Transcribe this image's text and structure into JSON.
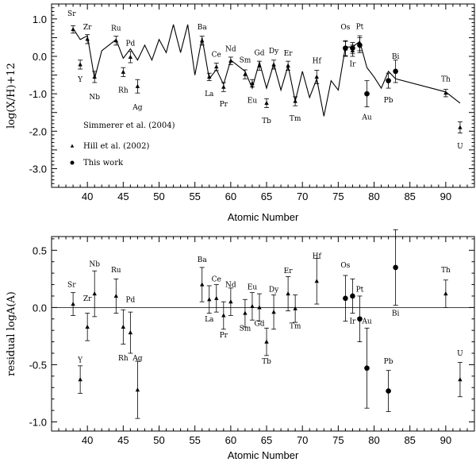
{
  "chart_data": [
    {
      "type": "scatter",
      "id": "top",
      "xlabel": "Atomic Number",
      "ylabel": "log(X/H)+12",
      "xlim": [
        35,
        94
      ],
      "ylim": [
        -3.5,
        1.4
      ],
      "xticks": [
        40,
        45,
        50,
        55,
        60,
        65,
        70,
        75,
        80,
        85,
        90
      ],
      "xtick_labels": [
        "40",
        "45",
        "50",
        "55",
        "60",
        "65",
        "70",
        "75",
        "80",
        "85",
        "90"
      ],
      "yticks": [
        1.0,
        0.0,
        -1.0,
        -2.0,
        -3.0
      ],
      "ytick_labels": [
        "1.0",
        "0.0",
        "-1.0",
        "-2.0",
        "-3.0"
      ],
      "legend": [
        {
          "marker": "none",
          "label": "Simmerer et al. (2004)"
        },
        {
          "marker": "triangle",
          "label": "Hill et al. (2002)"
        },
        {
          "marker": "circle",
          "label": "This work"
        }
      ],
      "series": [
        {
          "name": "Simmerer et al. (2004)",
          "kind": "line",
          "x": [
            38,
            39,
            40,
            41,
            42,
            44,
            45,
            46,
            47,
            48,
            49,
            50,
            51,
            52,
            53,
            54,
            55,
            56,
            57,
            58,
            59,
            60,
            62,
            63,
            64,
            65,
            66,
            67,
            68,
            69,
            70,
            71,
            72,
            73,
            74,
            75,
            76,
            77,
            78,
            79,
            80,
            81,
            82,
            83,
            90,
            92
          ],
          "y": [
            0.75,
            0.45,
            0.55,
            -0.6,
            0.15,
            0.45,
            -0.05,
            0.2,
            -0.1,
            0.3,
            -0.1,
            0.45,
            0.1,
            0.85,
            0.1,
            0.85,
            -0.5,
            0.5,
            -0.6,
            -0.35,
            -0.75,
            -0.1,
            -0.4,
            -0.85,
            -0.15,
            -0.85,
            -0.2,
            -0.9,
            -0.25,
            -1.2,
            -0.4,
            -1.1,
            -0.6,
            -1.6,
            -0.65,
            -0.9,
            0.25,
            0.25,
            0.4,
            -0.3,
            -0.55,
            -0.85,
            -0.4,
            -0.6,
            -0.95,
            -1.25
          ]
        },
        {
          "name": "Hill et al. (2002)",
          "kind": "triangle",
          "points": [
            {
              "el": "Sr",
              "z": 38,
              "y": 0.72,
              "err": 0.1
            },
            {
              "el": "Y",
              "z": 39,
              "y": -0.22,
              "err": 0.12
            },
            {
              "el": "Zr",
              "z": 40,
              "y": 0.46,
              "err": 0.12
            },
            {
              "el": "Nb",
              "z": 41,
              "y": -0.55,
              "err": 0.15
            },
            {
              "el": "Ru",
              "z": 44,
              "y": 0.42,
              "err": 0.12
            },
            {
              "el": "Rh",
              "z": 45,
              "y": -0.42,
              "err": 0.12
            },
            {
              "el": "Pd",
              "z": 46,
              "y": -0.02,
              "err": 0.15
            },
            {
              "el": "Ag",
              "z": 47,
              "y": -0.8,
              "err": 0.18
            },
            {
              "el": "Ba",
              "z": 56,
              "y": 0.42,
              "err": 0.12
            },
            {
              "el": "La",
              "z": 57,
              "y": -0.55,
              "err": 0.1
            },
            {
              "el": "Ce",
              "z": 58,
              "y": -0.28,
              "err": 0.1
            },
            {
              "el": "Pr",
              "z": 59,
              "y": -0.82,
              "err": 0.12
            },
            {
              "el": "Nd",
              "z": 60,
              "y": -0.12,
              "err": 0.1
            },
            {
              "el": "Sm",
              "z": 62,
              "y": -0.48,
              "err": 0.12
            },
            {
              "el": "Eu",
              "z": 63,
              "y": -0.72,
              "err": 0.1
            },
            {
              "el": "Gd",
              "z": 64,
              "y": -0.25,
              "err": 0.12
            },
            {
              "el": "Tb",
              "z": 65,
              "y": -1.25,
              "err": 0.12
            },
            {
              "el": "Dy",
              "z": 66,
              "y": -0.22,
              "err": 0.12
            },
            {
              "el": "Er",
              "z": 68,
              "y": -0.25,
              "err": 0.12
            },
            {
              "el": "Tm",
              "z": 69,
              "y": -1.2,
              "err": 0.12
            },
            {
              "el": "Hf",
              "z": 72,
              "y": -0.55,
              "err": 0.18
            },
            {
              "el": "Os",
              "z": 76,
              "y": 0.2,
              "err": 0.2
            },
            {
              "el": "Ir",
              "z": 77,
              "y": 0.15,
              "err": 0.15
            },
            {
              "el": "Pt",
              "z": 78,
              "y": 0.35,
              "err": 0.2
            },
            {
              "el": "Th",
              "z": 90,
              "y": -0.98,
              "err": 0.1
            },
            {
              "el": "U",
              "z": 92,
              "y": -1.9,
              "err": 0.15
            }
          ]
        },
        {
          "name": "This work",
          "kind": "circle",
          "points": [
            {
              "el": "Os",
              "z": 76,
              "y": 0.22,
              "err": 0.2
            },
            {
              "el": "Ir",
              "z": 77,
              "y": 0.22,
              "err": 0.15
            },
            {
              "el": "Pt",
              "z": 78,
              "y": 0.3,
              "err": 0.2
            },
            {
              "el": "Au",
              "z": 79,
              "y": -1.0,
              "err": 0.35
            },
            {
              "el": "Pb",
              "z": 82,
              "y": -0.65,
              "err": 0.2
            },
            {
              "el": "Bi",
              "z": 83,
              "y": -0.4,
              "err": 0.3
            }
          ]
        }
      ],
      "element_labels": [
        {
          "el": "Sr",
          "z": 37.8,
          "y": 1.15
        },
        {
          "el": "Zr",
          "z": 40,
          "y": 0.78
        },
        {
          "el": "Y",
          "z": 39,
          "y": -0.62
        },
        {
          "el": "Nb",
          "z": 41,
          "y": -1.08
        },
        {
          "el": "Ru",
          "z": 44,
          "y": 0.75
        },
        {
          "el": "Pd",
          "z": 46,
          "y": 0.35
        },
        {
          "el": "Rh",
          "z": 45,
          "y": -0.9
        },
        {
          "el": "Ag",
          "z": 47,
          "y": -1.36
        },
        {
          "el": "Ba",
          "z": 56,
          "y": 0.78
        },
        {
          "el": "Ce",
          "z": 58,
          "y": 0.05
        },
        {
          "el": "Nd",
          "z": 60,
          "y": 0.2
        },
        {
          "el": "La",
          "z": 57,
          "y": -1.0
        },
        {
          "el": "Pr",
          "z": 59,
          "y": -1.27
        },
        {
          "el": "Sm",
          "z": 62,
          "y": -0.1
        },
        {
          "el": "Gd",
          "z": 64,
          "y": 0.1
        },
        {
          "el": "Dy",
          "z": 66,
          "y": 0.15
        },
        {
          "el": "Er",
          "z": 68,
          "y": 0.08
        },
        {
          "el": "Eu",
          "z": 63,
          "y": -1.18
        },
        {
          "el": "Tb",
          "z": 65,
          "y": -1.72
        },
        {
          "el": "Tm",
          "z": 69,
          "y": -1.65
        },
        {
          "el": "Hf",
          "z": 72,
          "y": -0.12
        },
        {
          "el": "Os",
          "z": 76,
          "y": 0.78
        },
        {
          "el": "Pt",
          "z": 78,
          "y": 0.8
        },
        {
          "el": "Ir",
          "z": 77,
          "y": -0.2
        },
        {
          "el": "Au",
          "z": 79,
          "y": -1.62
        },
        {
          "el": "Bi",
          "z": 83,
          "y": 0.0
        },
        {
          "el": "Pb",
          "z": 82,
          "y": -1.17
        },
        {
          "el": "Th",
          "z": 90,
          "y": -0.6
        },
        {
          "el": "U",
          "z": 92,
          "y": -2.4
        }
      ]
    },
    {
      "type": "scatter",
      "id": "bottom",
      "xlabel": "Atomic Number",
      "ylabel": "residual logA(A)",
      "xlim": [
        35,
        94
      ],
      "ylim": [
        -1.08,
        0.62
      ],
      "xticks": [
        40,
        45,
        50,
        55,
        60,
        65,
        70,
        75,
        80,
        85,
        90
      ],
      "xtick_labels": [
        "40",
        "45",
        "50",
        "55",
        "60",
        "65",
        "70",
        "75",
        "80",
        "85",
        "90"
      ],
      "yticks": [
        0.5,
        0.0,
        -0.5,
        -1.0
      ],
      "ytick_labels": [
        "0.5",
        "0.0",
        "-0.5",
        "-1.0"
      ],
      "reference_line": 0.0,
      "series": [
        {
          "name": "triangles",
          "kind": "triangle",
          "points": [
            {
              "el": "Sr",
              "z": 38,
              "y": 0.03,
              "err": 0.1
            },
            {
              "el": "Y",
              "z": 39,
              "y": -0.63,
              "err": 0.12
            },
            {
              "el": "Zr",
              "z": 40,
              "y": -0.17,
              "err": 0.12
            },
            {
              "el": "Nb",
              "z": 41,
              "y": 0.12,
              "err": 0.2
            },
            {
              "el": "Ru",
              "z": 44,
              "y": 0.1,
              "err": 0.15
            },
            {
              "el": "Rh",
              "z": 45,
              "y": -0.17,
              "err": 0.15
            },
            {
              "el": "Pd",
              "z": 46,
              "y": -0.22,
              "err": 0.18
            },
            {
              "el": "Ag",
              "z": 47,
              "y": -0.72,
              "err": 0.25
            },
            {
              "el": "Ba",
              "z": 56,
              "y": 0.2,
              "err": 0.15
            },
            {
              "el": "La",
              "z": 57,
              "y": 0.07,
              "err": 0.12
            },
            {
              "el": "Ce",
              "z": 58,
              "y": 0.08,
              "err": 0.12
            },
            {
              "el": "Pr",
              "z": 59,
              "y": -0.07,
              "err": 0.12
            },
            {
              "el": "Nd",
              "z": 60,
              "y": 0.05,
              "err": 0.12
            },
            {
              "el": "Sm",
              "z": 62,
              "y": -0.05,
              "err": 0.12
            },
            {
              "el": "Eu",
              "z": 63,
              "y": 0.01,
              "err": 0.12
            },
            {
              "el": "Gd",
              "z": 64,
              "y": 0.0,
              "err": 0.12
            },
            {
              "el": "Tb",
              "z": 65,
              "y": -0.3,
              "err": 0.12
            },
            {
              "el": "Dy",
              "z": 66,
              "y": -0.04,
              "err": 0.15
            },
            {
              "el": "Er",
              "z": 68,
              "y": 0.12,
              "err": 0.15
            },
            {
              "el": "Tm",
              "z": 69,
              "y": -0.01,
              "err": 0.12
            },
            {
              "el": "Hf",
              "z": 72,
              "y": 0.23,
              "err": 0.2
            },
            {
              "el": "Th",
              "z": 90,
              "y": 0.12,
              "err": 0.12
            },
            {
              "el": "U",
              "z": 92,
              "y": -0.63,
              "err": 0.15
            }
          ]
        },
        {
          "name": "circles",
          "kind": "circle",
          "points": [
            {
              "el": "Os",
              "z": 76,
              "y": 0.08,
              "err": 0.2
            },
            {
              "el": "Ir",
              "z": 77,
              "y": 0.1,
              "err": 0.15
            },
            {
              "el": "Pt",
              "z": 78,
              "y": -0.1,
              "err": 0.2
            },
            {
              "el": "Au",
              "z": 79,
              "y": -0.53,
              "err": 0.35
            },
            {
              "el": "Pb",
              "z": 82,
              "y": -0.73,
              "err": 0.18
            },
            {
              "el": "Bi",
              "z": 83,
              "y": 0.35,
              "err": 0.33
            }
          ]
        }
      ],
      "element_labels": [
        {
          "el": "Sr",
          "z": 37.8,
          "y": 0.2
        },
        {
          "el": "Y",
          "z": 39,
          "y": -0.46
        },
        {
          "el": "Zr",
          "z": 40,
          "y": 0.08
        },
        {
          "el": "Nb",
          "z": 41,
          "y": 0.38
        },
        {
          "el": "Ru",
          "z": 44,
          "y": 0.33
        },
        {
          "el": "Pd",
          "z": 46,
          "y": 0.07
        },
        {
          "el": "Rh",
          "z": 45,
          "y": -0.44
        },
        {
          "el": "Ag",
          "z": 47,
          "y": -0.44
        },
        {
          "el": "Ba",
          "z": 56,
          "y": 0.42
        },
        {
          "el": "Ce",
          "z": 58,
          "y": 0.25
        },
        {
          "el": "Nd",
          "z": 60,
          "y": 0.2
        },
        {
          "el": "La",
          "z": 57,
          "y": -0.1
        },
        {
          "el": "Pr",
          "z": 59,
          "y": -0.24
        },
        {
          "el": "Sm",
          "z": 62,
          "y": -0.18
        },
        {
          "el": "Eu",
          "z": 63,
          "y": 0.18
        },
        {
          "el": "Gd",
          "z": 64,
          "y": -0.14
        },
        {
          "el": "Dy",
          "z": 66,
          "y": 0.16
        },
        {
          "el": "Er",
          "z": 68,
          "y": 0.32
        },
        {
          "el": "Tb",
          "z": 65,
          "y": -0.47
        },
        {
          "el": "Tm",
          "z": 69,
          "y": -0.16
        },
        {
          "el": "Hf",
          "z": 72,
          "y": 0.45
        },
        {
          "el": "Os",
          "z": 76,
          "y": 0.37
        },
        {
          "el": "Pt",
          "z": 78,
          "y": 0.16
        },
        {
          "el": "Ir",
          "z": 77,
          "y": -0.12
        },
        {
          "el": "Au",
          "z": 79,
          "y": -0.12
        },
        {
          "el": "Bi",
          "z": 83,
          "y": -0.05
        },
        {
          "el": "Pb",
          "z": 82,
          "y": -0.47
        },
        {
          "el": "Th",
          "z": 90,
          "y": 0.33
        },
        {
          "el": "U",
          "z": 92,
          "y": -0.4
        }
      ]
    }
  ]
}
